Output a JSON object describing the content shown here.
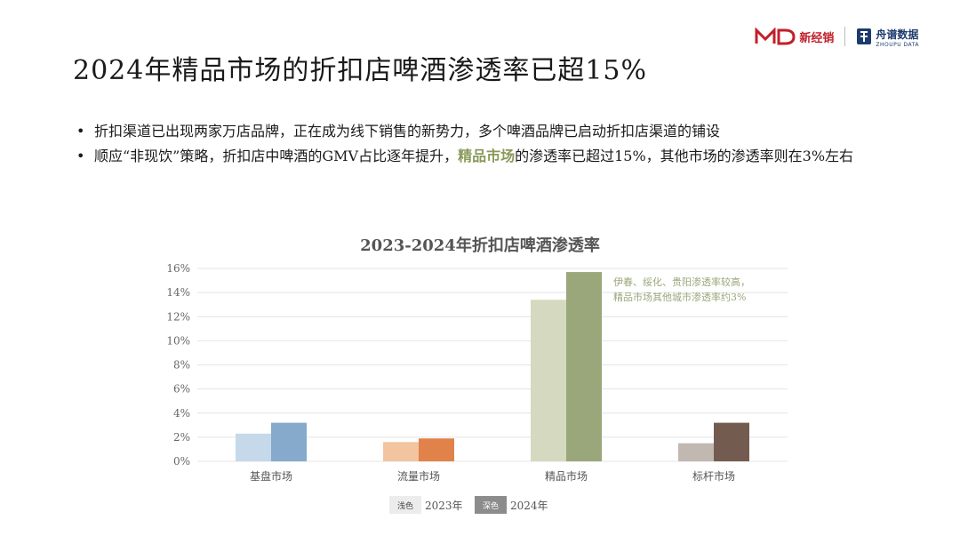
{
  "logos": {
    "brand1_text": "新经销",
    "brand2_text": "舟谱数据",
    "brand2_sub": "ZHOUPU DATA"
  },
  "title": "2024年精品市场的折扣店啤酒渗透率已超15%",
  "bullets": {
    "b1": "折扣渠道已出现两家万店品牌，正在成为线下销售的新势力，多个啤酒品牌已启动折扣店渠道的铺设",
    "b2_pre": "顺应“非现饮”策略，折扣店中啤酒的GMV占比逐年提升，",
    "b2_hl": "精品市场",
    "b2_post": "的渗透率已超过15%，其他市场的渗透率则在3%左右"
  },
  "chart_data": {
    "type": "bar",
    "title": "2023-2024年折扣店啤酒渗透率",
    "categories": [
      "基盘市场",
      "流量市场",
      "精品市场",
      "标杆市场"
    ],
    "series": [
      {
        "name": "2023年",
        "values": [
          2.3,
          1.6,
          13.4,
          1.5
        ]
      },
      {
        "name": "2024年",
        "values": [
          3.2,
          1.9,
          15.7,
          3.2
        ]
      }
    ],
    "yticks": [
      "0%",
      "2%",
      "4%",
      "6%",
      "8%",
      "10%",
      "12%",
      "14%",
      "16%"
    ],
    "ylim": [
      0,
      16
    ],
    "grid": true,
    "legend": [
      {
        "swatch_label": "浅色",
        "label": "2023年",
        "color": "#ececec",
        "text_color": "#444444"
      },
      {
        "swatch_label": "深色",
        "label": "2024年",
        "color": "#8c8c8c",
        "text_color": "#ffffff"
      }
    ],
    "colors": {
      "light": [
        "#c6d9ea",
        "#f3c4a0",
        "#d4d9c0",
        "#c2b8b2"
      ],
      "dark": [
        "#85aacb",
        "#e1824a",
        "#9aa77a",
        "#735c4f"
      ]
    },
    "annotation": [
      "伊春、绥化、贵阳渗透率较高，",
      "精品市场其他城市渗透率约3%"
    ],
    "annotation_color": "#9aa77a"
  }
}
